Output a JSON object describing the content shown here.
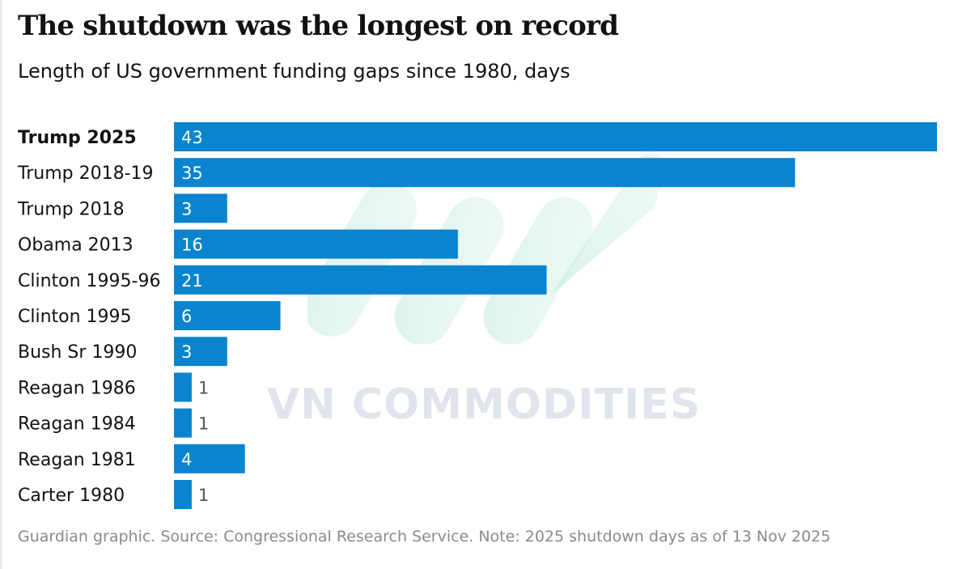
{
  "title": "The shutdown was the longest on record",
  "subtitle": "Length of US government funding gaps since 1980, days",
  "source_note": "Guardian graphic. Source: Congressional Research Service. Note: 2025 shutdown days as of 13 Nov 2025",
  "watermark_text": "VN COMMODITIES",
  "chart_data": {
    "type": "bar",
    "orientation": "horizontal",
    "categories": [
      "Trump 2025",
      "Trump 2018-19",
      "Trump 2018",
      "Obama 2013",
      "Clinton 1995-96",
      "Clinton 1995",
      "Bush Sr 1990",
      "Reagan 1986",
      "Reagan 1984",
      "Reagan 1981",
      "Carter 1980"
    ],
    "values": [
      43,
      35,
      3,
      16,
      21,
      6,
      3,
      1,
      1,
      4,
      1
    ],
    "highlighted_category": "Trump 2025",
    "xlim": [
      0,
      43
    ],
    "grid": false,
    "bar_color": "#0a84cf"
  }
}
